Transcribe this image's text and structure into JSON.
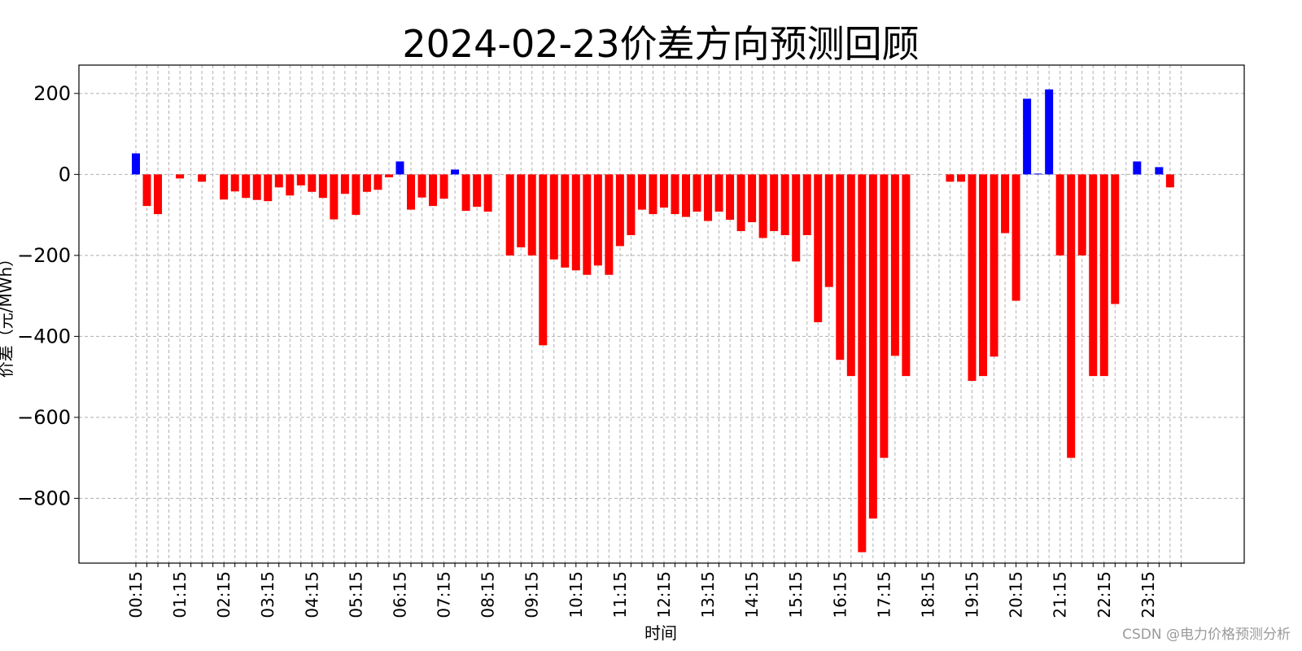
{
  "chart_data": {
    "type": "bar",
    "title": "2024-02-23价差方向预测回顾",
    "xlabel": "时间",
    "ylabel": "价差（元/MWh）",
    "ylim": [
      -960,
      270
    ],
    "yticks": [
      200,
      0,
      -200,
      -400,
      -600,
      -800
    ],
    "ytick_labels": [
      "200",
      "0",
      "−200",
      "−400",
      "−600",
      "−800"
    ],
    "grid": true,
    "colors": {
      "positive": "#0000ff",
      "negative": "#ff0000"
    },
    "x": [
      "00:15",
      "00:30",
      "00:45",
      "01:00",
      "01:15",
      "01:30",
      "01:45",
      "02:00",
      "02:15",
      "02:30",
      "02:45",
      "03:00",
      "03:15",
      "03:30",
      "03:45",
      "04:00",
      "04:15",
      "04:30",
      "04:45",
      "05:00",
      "05:15",
      "05:30",
      "05:45",
      "06:00",
      "06:15",
      "06:30",
      "06:45",
      "07:00",
      "07:15",
      "07:30",
      "07:45",
      "08:00",
      "08:15",
      "08:30",
      "08:45",
      "09:00",
      "09:15",
      "09:30",
      "09:45",
      "10:00",
      "10:15",
      "10:30",
      "10:45",
      "11:00",
      "11:15",
      "11:30",
      "11:45",
      "12:00",
      "12:15",
      "12:30",
      "12:45",
      "13:00",
      "13:15",
      "13:30",
      "13:45",
      "14:00",
      "14:15",
      "14:30",
      "14:45",
      "15:00",
      "15:15",
      "15:30",
      "15:45",
      "16:00",
      "16:15",
      "16:30",
      "16:45",
      "17:00",
      "17:15",
      "17:30",
      "17:45",
      "18:00",
      "18:15",
      "18:30",
      "18:45",
      "19:00",
      "19:15",
      "19:30",
      "19:45",
      "20:00",
      "20:15",
      "20:30",
      "20:45",
      "21:00",
      "21:15",
      "21:30",
      "21:45",
      "22:00",
      "22:15",
      "22:30",
      "22:45",
      "23:00",
      "23:15",
      "23:30",
      "23:45",
      "24:00"
    ],
    "tick_labels": [
      "00:15",
      "01:15",
      "02:15",
      "03:15",
      "04:15",
      "05:15",
      "06:15",
      "07:15",
      "08:15",
      "09:15",
      "10:15",
      "11:15",
      "12:15",
      "13:15",
      "14:15",
      "15:15",
      "16:15",
      "17:15",
      "18:15",
      "19:15",
      "20:15",
      "21:15",
      "22:15",
      "23:15"
    ],
    "values": [
      52,
      -78,
      -98,
      0,
      -10,
      0,
      -18,
      0,
      -62,
      -42,
      -58,
      -63,
      -66,
      -32,
      -52,
      -27,
      -43,
      -58,
      -111,
      -48,
      -100,
      -43,
      -38,
      -7,
      32,
      -87,
      -57,
      -78,
      -60,
      12,
      -90,
      -80,
      -92,
      0,
      -200,
      -180,
      -200,
      -422,
      -210,
      -230,
      -237,
      -248,
      -225,
      -248,
      -177,
      -150,
      -87,
      -98,
      -82,
      -98,
      -105,
      -92,
      -115,
      -92,
      -112,
      -140,
      -118,
      -157,
      -140,
      -150,
      -215,
      -150,
      -365,
      -278,
      -458,
      -498,
      -933,
      -850,
      -700,
      -448,
      -498,
      0,
      0,
      0,
      -18,
      -18,
      -510,
      -498,
      -450,
      -145,
      -312,
      187,
      2,
      210,
      -200,
      -700,
      -200,
      -498,
      -498,
      -320,
      0,
      32,
      0,
      18,
      -32,
      0
    ]
  },
  "watermark": "CSDN @电力价格预测分析"
}
